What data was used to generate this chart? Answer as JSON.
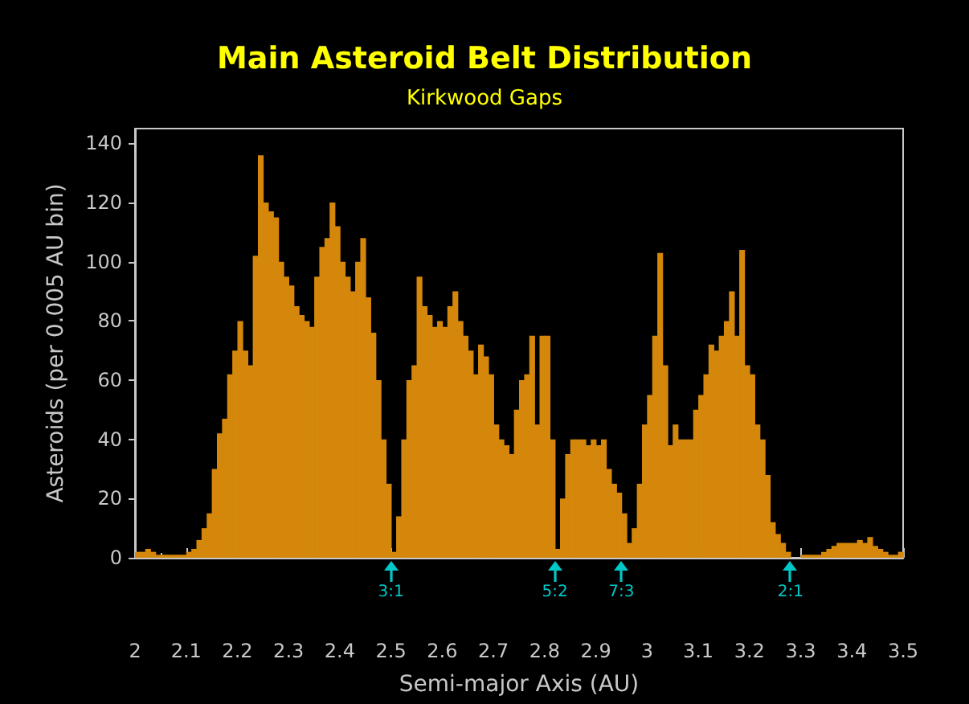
{
  "chart_data": {
    "type": "histogram",
    "title": "Main Asteroid Belt Distribution",
    "subtitle": "Kirkwood Gaps",
    "xlabel": "Semi-major Axis (AU)",
    "ylabel": "Asteroids (per 0.005 AU bin)",
    "color": "#d4870a",
    "grid": false,
    "xlim": [
      2,
      3.5
    ],
    "xticks": [
      2,
      2.1,
      2.2,
      2.3,
      2.4,
      2.5,
      2.6,
      2.7,
      2.8,
      2.9,
      3,
      3.1,
      3.2,
      3.3,
      3.4,
      3.5
    ],
    "ylim": [
      0,
      145
    ],
    "yticks": [
      0,
      20,
      40,
      60,
      80,
      100,
      120,
      140
    ],
    "bins": [
      2,
      2.01,
      2.02,
      2.03,
      2.04,
      2.05,
      2.06,
      2.07,
      2.08,
      2.09,
      2.1,
      2.11,
      2.12,
      2.13,
      2.14,
      2.15,
      2.16,
      2.17,
      2.18,
      2.19,
      2.2,
      2.21,
      2.22,
      2.23,
      2.24,
      2.25,
      2.26,
      2.27,
      2.28,
      2.29,
      2.3,
      2.31,
      2.32,
      2.33,
      2.34,
      2.35,
      2.36,
      2.37,
      2.38,
      2.39,
      2.4,
      2.41,
      2.42,
      2.43,
      2.44,
      2.45,
      2.46,
      2.47,
      2.48,
      2.49,
      2.5,
      2.51,
      2.52,
      2.53,
      2.54,
      2.55,
      2.56,
      2.57,
      2.58,
      2.59,
      2.6,
      2.61,
      2.62,
      2.63,
      2.64,
      2.65,
      2.66,
      2.67,
      2.68,
      2.69,
      2.7,
      2.71,
      2.72,
      2.73,
      2.74,
      2.75,
      2.76,
      2.77,
      2.78,
      2.79,
      2.8,
      2.81,
      2.82,
      2.83,
      2.84,
      2.85,
      2.86,
      2.87,
      2.88,
      2.89,
      2.9,
      2.91,
      2.92,
      2.93,
      2.94,
      2.95,
      2.96,
      2.97,
      2.98,
      2.99,
      3,
      3.01,
      3.02,
      3.03,
      3.04,
      3.05,
      3.06,
      3.07,
      3.08,
      3.09,
      3.1,
      3.11,
      3.12,
      3.13,
      3.14,
      3.15,
      3.16,
      3.17,
      3.18,
      3.19,
      3.2,
      3.21,
      3.22,
      3.23,
      3.24,
      3.25,
      3.26,
      3.27,
      3.28,
      3.29,
      3.3,
      3.31,
      3.32,
      3.33,
      3.34,
      3.35,
      3.36,
      3.37,
      3.38,
      3.39,
      3.4,
      3.41,
      3.42,
      3.43,
      3.44,
      3.45,
      3.46,
      3.47,
      3.48,
      3.49,
      3.5
    ],
    "values": [
      2,
      2,
      3,
      2,
      1,
      1,
      1,
      1,
      1,
      1,
      2,
      3,
      6,
      10,
      15,
      30,
      42,
      47,
      62,
      70,
      80,
      70,
      65,
      102,
      136,
      120,
      117,
      115,
      100,
      95,
      92,
      85,
      82,
      80,
      78,
      95,
      105,
      108,
      120,
      112,
      100,
      95,
      90,
      100,
      108,
      88,
      76,
      60,
      40,
      25,
      2,
      14,
      40,
      60,
      65,
      95,
      85,
      82,
      78,
      80,
      78,
      85,
      90,
      80,
      75,
      70,
      62,
      72,
      68,
      62,
      45,
      40,
      38,
      35,
      50,
      60,
      62,
      75,
      45,
      75,
      75,
      40,
      3,
      20,
      35,
      40,
      40,
      40,
      38,
      40,
      38,
      40,
      30,
      25,
      22,
      15,
      5,
      10,
      25,
      45,
      55,
      75,
      103,
      65,
      38,
      45,
      40,
      40,
      40,
      50,
      55,
      62,
      72,
      70,
      75,
      80,
      90,
      75,
      104,
      65,
      62,
      45,
      40,
      28,
      12,
      8,
      5,
      2,
      0,
      0,
      1,
      1,
      1,
      1,
      2,
      3,
      4,
      5,
      5,
      5,
      5,
      6,
      5,
      7,
      4,
      3,
      2,
      1,
      1,
      2
    ],
    "annotations": [
      {
        "text": "3:1",
        "x": 2.5,
        "y": 0
      },
      {
        "text": "5:2",
        "x": 2.82,
        "y": 0
      },
      {
        "text": "7:3",
        "x": 2.95,
        "y": 0
      },
      {
        "text": "2:1",
        "x": 3.28,
        "y": 0
      }
    ]
  }
}
